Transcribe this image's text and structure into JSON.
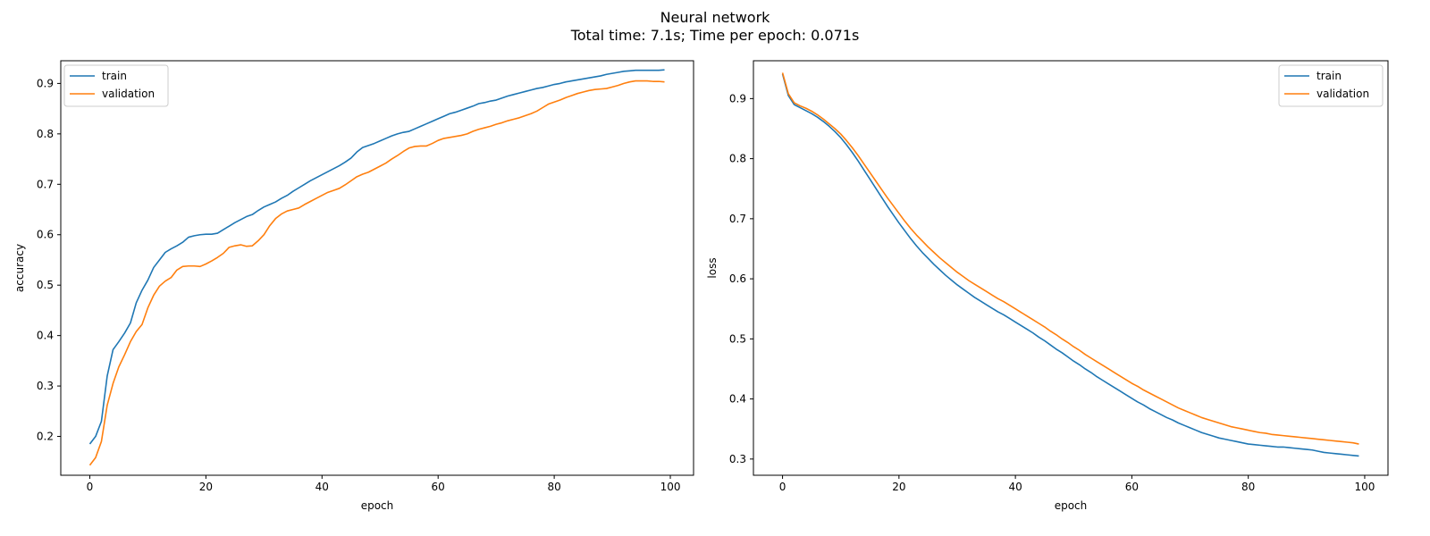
{
  "suptitle": {
    "line1": "Neural network",
    "line2": "Total time: 7.1s; Time per epoch: 0.071s"
  },
  "colors": {
    "train": "#1f77b4",
    "validation": "#ff7f0e"
  },
  "chart_data": [
    {
      "type": "line",
      "xlabel": "epoch",
      "ylabel": "accuracy",
      "xlim": [
        -5,
        104
      ],
      "ylim": [
        0.123,
        0.945
      ],
      "xticks": [
        0,
        20,
        40,
        60,
        80,
        100
      ],
      "yticks": [
        0.2,
        0.3,
        0.4,
        0.5,
        0.6,
        0.7,
        0.8,
        0.9
      ],
      "legend": "upper-left",
      "grid": false,
      "series": [
        {
          "name": "train",
          "values": [
            0.185,
            0.2,
            0.23,
            0.32,
            0.372,
            0.388,
            0.405,
            0.425,
            0.465,
            0.49,
            0.51,
            0.535,
            0.55,
            0.565,
            0.572,
            0.578,
            0.585,
            0.595,
            0.598,
            0.6,
            0.601,
            0.601,
            0.603,
            0.61,
            0.617,
            0.624,
            0.63,
            0.636,
            0.64,
            0.648,
            0.655,
            0.66,
            0.665,
            0.672,
            0.678,
            0.686,
            0.693,
            0.7,
            0.707,
            0.713,
            0.719,
            0.725,
            0.731,
            0.737,
            0.744,
            0.752,
            0.764,
            0.773,
            0.777,
            0.781,
            0.786,
            0.791,
            0.796,
            0.8,
            0.803,
            0.805,
            0.81,
            0.815,
            0.82,
            0.825,
            0.83,
            0.835,
            0.84,
            0.843,
            0.847,
            0.851,
            0.855,
            0.86,
            0.862,
            0.865,
            0.867,
            0.871,
            0.875,
            0.878,
            0.881,
            0.884,
            0.887,
            0.89,
            0.892,
            0.895,
            0.898,
            0.9,
            0.903,
            0.905,
            0.907,
            0.909,
            0.911,
            0.913,
            0.915,
            0.918,
            0.92,
            0.922,
            0.924,
            0.925,
            0.926,
            0.926,
            0.926,
            0.926,
            0.926,
            0.927
          ]
        },
        {
          "name": "validation",
          "values": [
            0.143,
            0.158,
            0.19,
            0.262,
            0.305,
            0.338,
            0.362,
            0.388,
            0.408,
            0.422,
            0.455,
            0.48,
            0.498,
            0.508,
            0.515,
            0.53,
            0.537,
            0.538,
            0.538,
            0.537,
            0.542,
            0.548,
            0.555,
            0.563,
            0.575,
            0.578,
            0.58,
            0.577,
            0.578,
            0.588,
            0.6,
            0.618,
            0.632,
            0.641,
            0.647,
            0.65,
            0.653,
            0.66,
            0.666,
            0.672,
            0.678,
            0.684,
            0.688,
            0.692,
            0.699,
            0.707,
            0.715,
            0.72,
            0.724,
            0.73,
            0.736,
            0.742,
            0.75,
            0.757,
            0.765,
            0.772,
            0.775,
            0.776,
            0.776,
            0.781,
            0.787,
            0.791,
            0.793,
            0.795,
            0.797,
            0.8,
            0.805,
            0.809,
            0.812,
            0.815,
            0.819,
            0.822,
            0.826,
            0.829,
            0.832,
            0.836,
            0.84,
            0.845,
            0.852,
            0.859,
            0.863,
            0.867,
            0.872,
            0.876,
            0.88,
            0.883,
            0.886,
            0.888,
            0.889,
            0.89,
            0.893,
            0.896,
            0.9,
            0.903,
            0.905,
            0.905,
            0.905,
            0.904,
            0.904,
            0.903
          ]
        }
      ]
    },
    {
      "type": "line",
      "xlabel": "epoch",
      "ylabel": "loss",
      "xlim": [
        -5,
        104
      ],
      "ylim": [
        0.273,
        0.963
      ],
      "xticks": [
        0,
        20,
        40,
        60,
        80,
        100
      ],
      "yticks": [
        0.3,
        0.4,
        0.5,
        0.6,
        0.7,
        0.8,
        0.9
      ],
      "legend": "upper-right",
      "grid": false,
      "series": [
        {
          "name": "train",
          "values": [
            0.941,
            0.905,
            0.89,
            0.885,
            0.88,
            0.875,
            0.869,
            0.862,
            0.854,
            0.845,
            0.835,
            0.823,
            0.81,
            0.796,
            0.781,
            0.766,
            0.751,
            0.736,
            0.721,
            0.707,
            0.693,
            0.68,
            0.667,
            0.655,
            0.644,
            0.634,
            0.624,
            0.615,
            0.606,
            0.598,
            0.59,
            0.583,
            0.576,
            0.569,
            0.563,
            0.557,
            0.551,
            0.545,
            0.54,
            0.534,
            0.528,
            0.522,
            0.516,
            0.51,
            0.503,
            0.497,
            0.49,
            0.483,
            0.477,
            0.47,
            0.463,
            0.457,
            0.45,
            0.444,
            0.437,
            0.431,
            0.425,
            0.419,
            0.413,
            0.407,
            0.401,
            0.395,
            0.39,
            0.384,
            0.379,
            0.374,
            0.369,
            0.365,
            0.36,
            0.356,
            0.352,
            0.348,
            0.344,
            0.341,
            0.338,
            0.335,
            0.333,
            0.331,
            0.329,
            0.327,
            0.325,
            0.324,
            0.323,
            0.322,
            0.321,
            0.32,
            0.32,
            0.319,
            0.318,
            0.317,
            0.316,
            0.315,
            0.313,
            0.311,
            0.31,
            0.309,
            0.308,
            0.307,
            0.306,
            0.305
          ]
        },
        {
          "name": "validation",
          "values": [
            0.943,
            0.908,
            0.893,
            0.888,
            0.884,
            0.879,
            0.873,
            0.866,
            0.858,
            0.85,
            0.841,
            0.83,
            0.818,
            0.805,
            0.791,
            0.777,
            0.763,
            0.749,
            0.735,
            0.722,
            0.709,
            0.696,
            0.684,
            0.673,
            0.663,
            0.653,
            0.644,
            0.635,
            0.627,
            0.619,
            0.611,
            0.604,
            0.597,
            0.591,
            0.585,
            0.579,
            0.573,
            0.567,
            0.562,
            0.556,
            0.55,
            0.544,
            0.538,
            0.532,
            0.526,
            0.52,
            0.513,
            0.507,
            0.5,
            0.494,
            0.487,
            0.481,
            0.474,
            0.468,
            0.462,
            0.456,
            0.45,
            0.444,
            0.438,
            0.432,
            0.426,
            0.421,
            0.415,
            0.41,
            0.405,
            0.4,
            0.395,
            0.39,
            0.385,
            0.381,
            0.377,
            0.373,
            0.369,
            0.366,
            0.363,
            0.36,
            0.357,
            0.354,
            0.352,
            0.35,
            0.348,
            0.346,
            0.344,
            0.343,
            0.341,
            0.34,
            0.339,
            0.338,
            0.337,
            0.336,
            0.335,
            0.334,
            0.333,
            0.332,
            0.331,
            0.33,
            0.329,
            0.328,
            0.327,
            0.325
          ]
        }
      ]
    }
  ]
}
